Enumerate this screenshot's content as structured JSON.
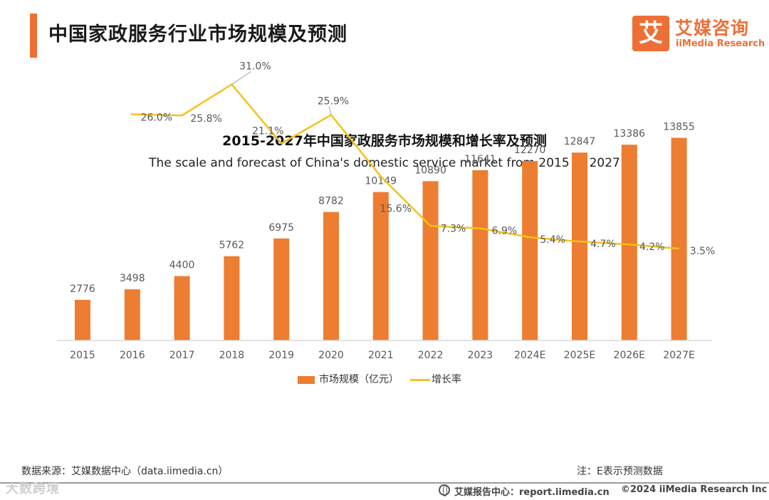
{
  "header": {
    "title": "中国家政服务行业市场规模及预测"
  },
  "logo": {
    "mark": "艾",
    "name_cn": "艾媒咨询",
    "name_en": "iiMedia Research"
  },
  "colors": {
    "accent": "#ee6f36",
    "bar": "#ed7d31",
    "line": "#f5c21b",
    "axis": "#d9d9d9",
    "label": "#595959"
  },
  "chart_data": {
    "type": "bar",
    "title": "2015-2027年中国家政服务市场规模和增长率及预测",
    "subtitle": "The scale and forecast of China's domestic service market from 2015 to 2027",
    "categories": [
      "2015",
      "2016",
      "2017",
      "2018",
      "2019",
      "2020",
      "2021",
      "2022",
      "2023",
      "2024E",
      "2025E",
      "2026E",
      "2027E"
    ],
    "series": [
      {
        "name": "市场规模（亿元）",
        "type": "bar",
        "values": [
          2776,
          3498,
          4400,
          5762,
          6975,
          8782,
          10149,
          10890,
          11641,
          12270,
          12847,
          13386,
          13855
        ],
        "labels": [
          "2776",
          "3498",
          "4400",
          "5762",
          "6975",
          "8782",
          "10149",
          "10890",
          "11641",
          "12270",
          "12847",
          "13386",
          "13855"
        ]
      },
      {
        "name": "增长率",
        "type": "line",
        "values": [
          null,
          26.0,
          25.8,
          31.0,
          21.1,
          25.9,
          15.6,
          7.3,
          6.9,
          5.4,
          4.7,
          4.2,
          3.5
        ],
        "labels": [
          "",
          "26.0%",
          "25.8%",
          "31.0%",
          "21.1%",
          "25.9%",
          "15.6%",
          "7.3%",
          "6.9%",
          "5.4%",
          "4.7%",
          "4.2%",
          "3.5%"
        ]
      }
    ],
    "ylim_bar": [
      0,
      15000
    ],
    "ylim_line": [
      -30,
      35
    ],
    "grid": false,
    "legend_position": "bottom-center"
  },
  "legend": {
    "bar_label": "市场规模（亿元）",
    "line_label": "增长率"
  },
  "footer": {
    "source": "数据来源：艾媒数据中心（data.iimedia.cn）",
    "note": "注：E表示预测数据",
    "report": "艾媒报告中心：report.iimedia.cn",
    "copyright": "©2024  iiMedia Research  Inc",
    "watermark": "大数跨境"
  }
}
